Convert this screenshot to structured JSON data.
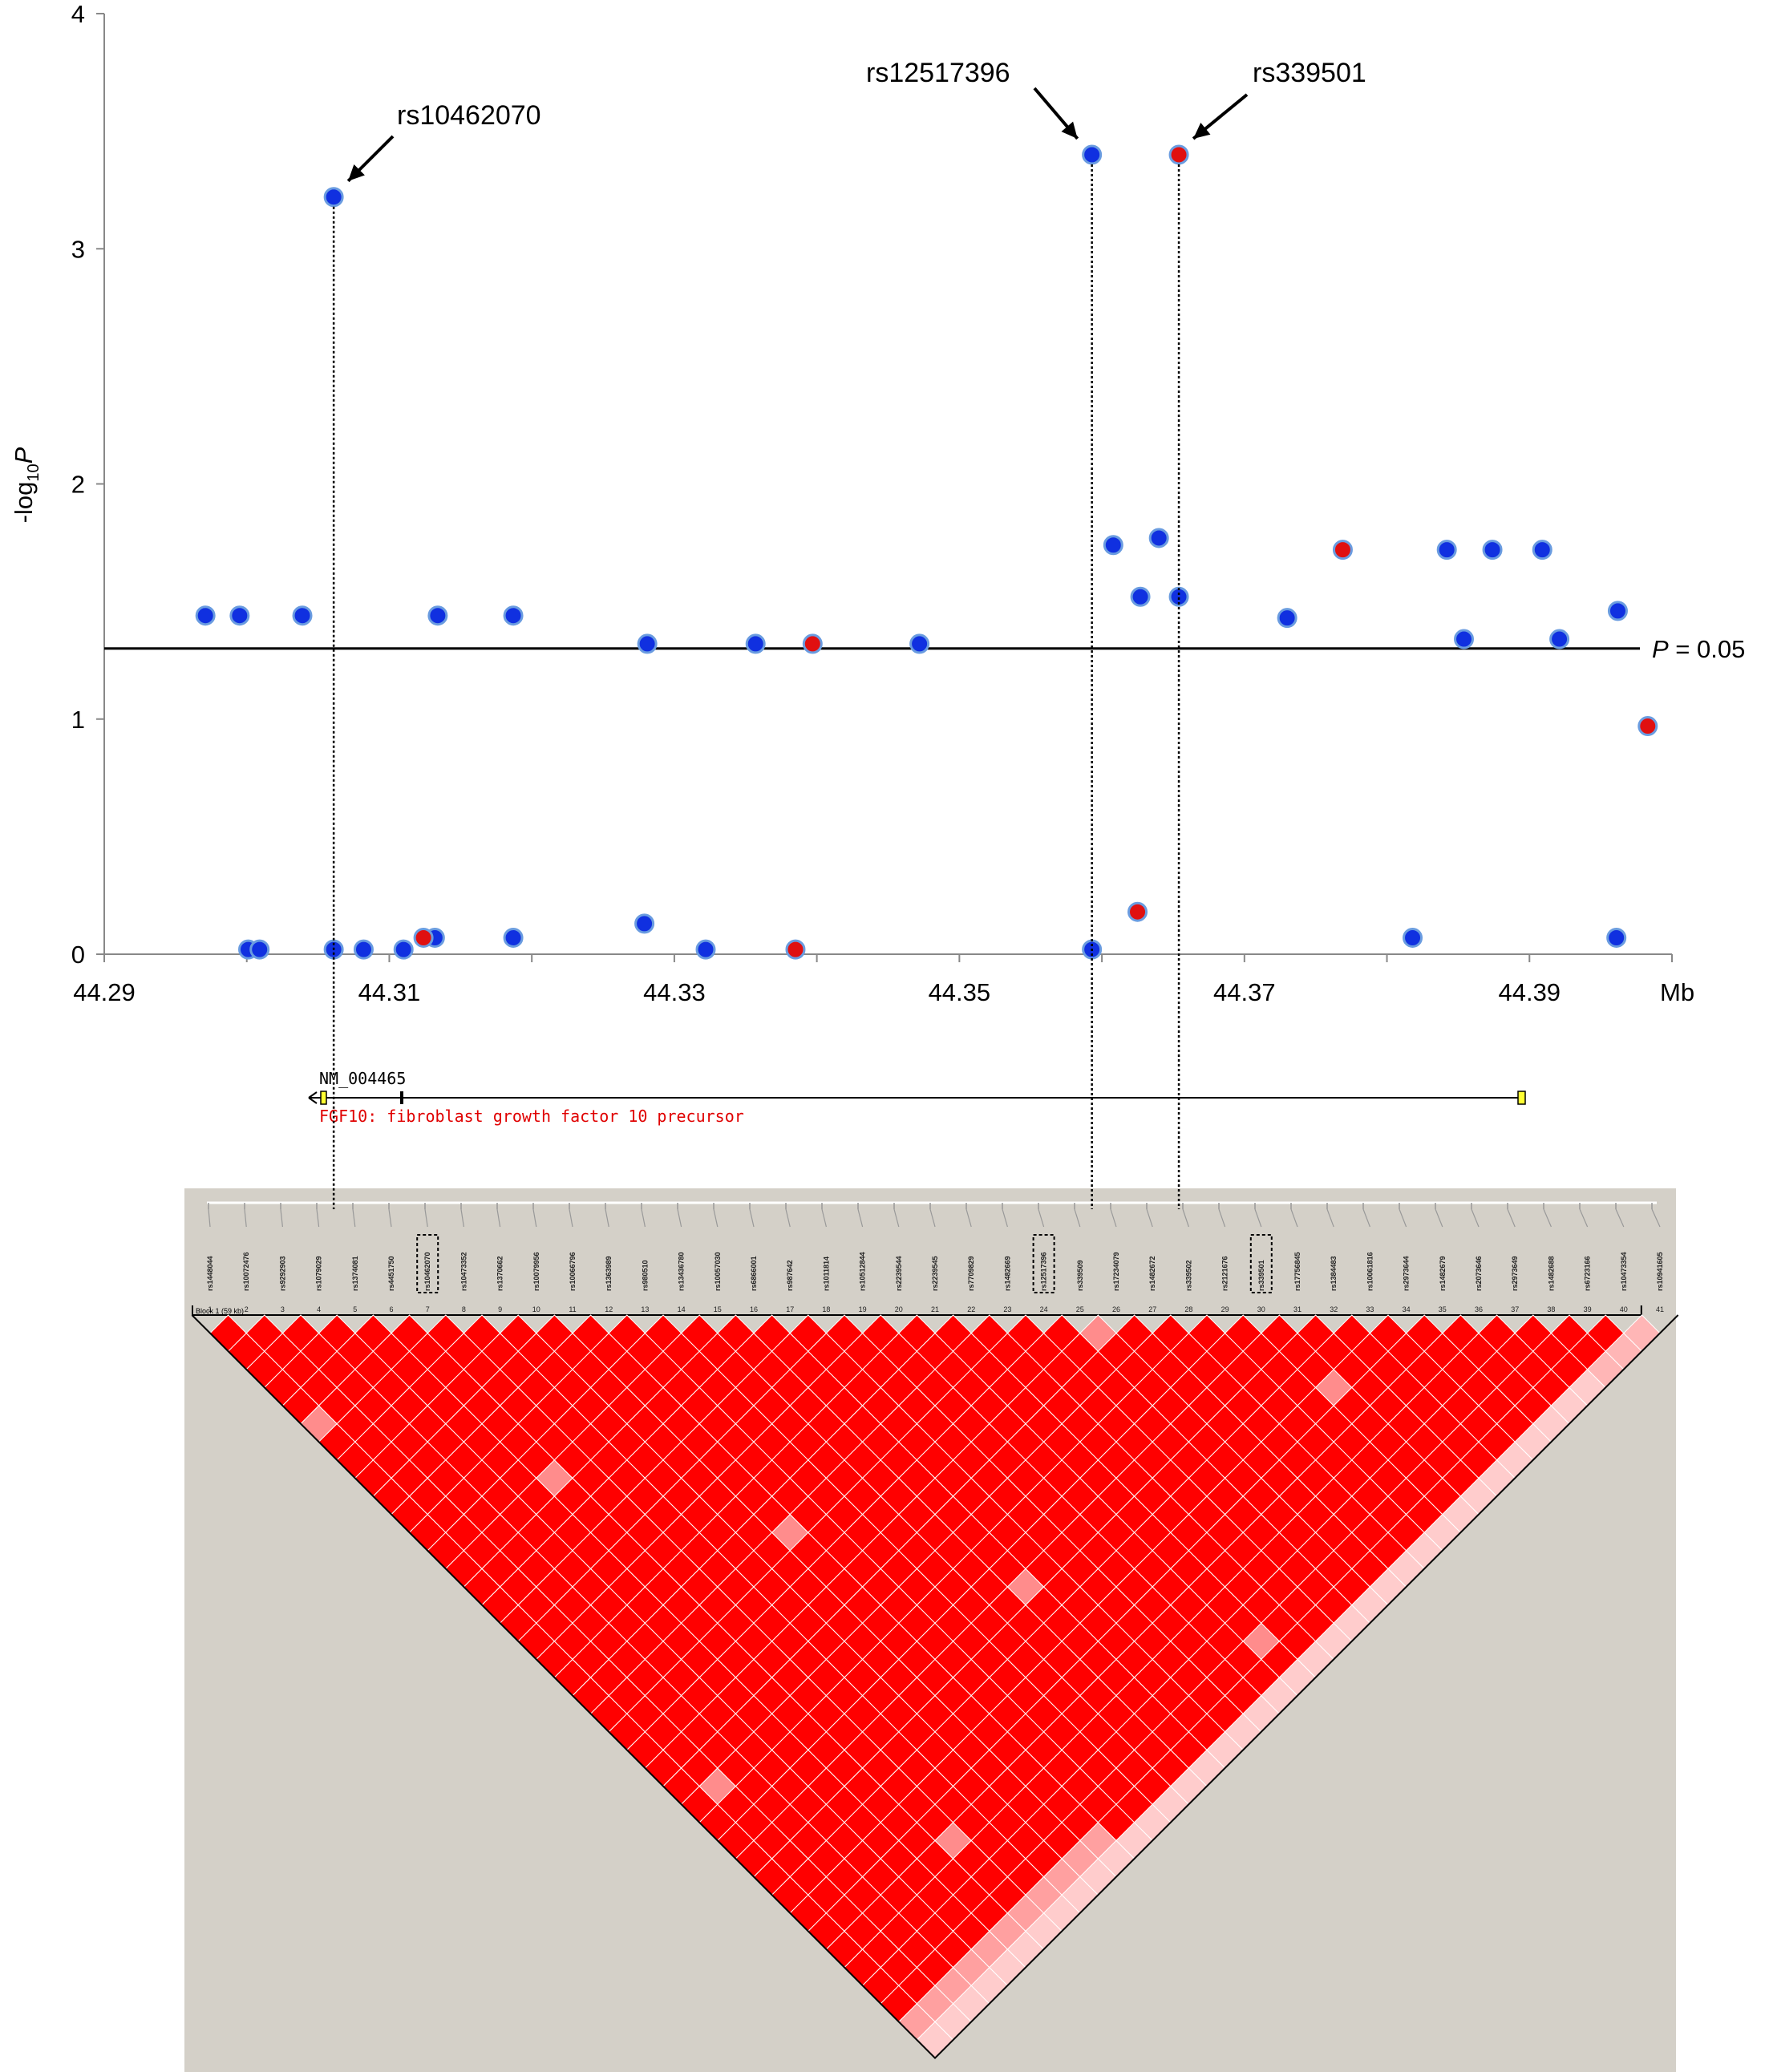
{
  "chart_data": {
    "type": "scatter",
    "title": "",
    "xlabel": "Mb",
    "ylabel": "-log10P",
    "xlim": [
      44.29,
      44.4
    ],
    "ylim": [
      0,
      4
    ],
    "x_ticks": [
      "44.29",
      "44.31",
      "44.33",
      "44.35",
      "44.37",
      "44.39"
    ],
    "y_ticks": [
      "0",
      "1",
      "2",
      "3",
      "4"
    ],
    "threshold": {
      "value": 1.3,
      "label_italic": "P",
      "label_rest": " = 0.05"
    },
    "series": [
      {
        "color": "#1030e0",
        "points": [
          [
            44.2971,
            1.44
          ],
          [
            44.2995,
            1.44
          ],
          [
            44.3039,
            1.44
          ],
          [
            44.3134,
            1.44
          ],
          [
            44.3187,
            1.44
          ],
          [
            44.3281,
            1.32
          ],
          [
            44.3357,
            1.32
          ],
          [
            44.3472,
            1.32
          ],
          [
            44.3608,
            1.74
          ],
          [
            44.3627,
            1.52
          ],
          [
            44.364,
            1.77
          ],
          [
            44.3654,
            1.52
          ],
          [
            44.373,
            1.43
          ],
          [
            44.3842,
            1.72
          ],
          [
            44.3874,
            1.72
          ],
          [
            44.3909,
            1.72
          ],
          [
            44.3854,
            1.34
          ],
          [
            44.3921,
            1.34
          ],
          [
            44.3962,
            1.46
          ],
          [
            44.3061,
            3.22
          ],
          [
            44.3593,
            3.4
          ],
          [
            44.3001,
            0.02
          ],
          [
            44.3009,
            0.02
          ],
          [
            44.3061,
            0.02
          ],
          [
            44.3082,
            0.02
          ],
          [
            44.311,
            0.02
          ],
          [
            44.3132,
            0.07
          ],
          [
            44.3187,
            0.07
          ],
          [
            44.3279,
            0.13
          ],
          [
            44.3322,
            0.02
          ],
          [
            44.3593,
            0.02
          ],
          [
            44.3818,
            0.07
          ],
          [
            44.3961,
            0.07
          ]
        ]
      },
      {
        "color": "#e01010",
        "points": [
          [
            44.3654,
            3.4
          ],
          [
            44.3397,
            1.32
          ],
          [
            44.3769,
            1.72
          ],
          [
            44.3983,
            0.97
          ],
          [
            44.3124,
            0.07
          ],
          [
            44.3625,
            0.18
          ],
          [
            44.3385,
            0.02
          ]
        ]
      }
    ],
    "annotations": [
      {
        "text": "rs10462070",
        "x": 44.3061,
        "y": 3.22
      },
      {
        "text": "rs12517396",
        "x": 44.3593,
        "y": 3.4
      },
      {
        "text": "rs339501",
        "x": 44.3654,
        "y": 3.4
      }
    ]
  },
  "gene": {
    "transcript": "NM_004465",
    "description": "FGF10: fibroblast growth factor 10 precursor",
    "description_color": "#e00000"
  },
  "ld_plot": {
    "block_label": "Block 1 (59 kb)",
    "snps": [
      "rs1448044",
      "rs10072476",
      "rs9292903",
      "rs1079029",
      "rs1374081",
      "rs4451750",
      "rs10462070",
      "rs10473352",
      "rs1370662",
      "rs10079956",
      "rs10066796",
      "rs1363989",
      "rs980510",
      "rs13436780",
      "rs10057030",
      "rs6866001",
      "rs987642",
      "rs1011814",
      "rs10512844",
      "rs2239544",
      "rs2239545",
      "rs7709829",
      "rs1482669",
      "rs12517396",
      "rs339509",
      "rs17234079",
      "rs1482672",
      "rs339502",
      "rs2121676",
      "rs339501",
      "rs17756845",
      "rs1384483",
      "rs10061816",
      "rs2973644",
      "rs1482679",
      "rs2073646",
      "rs2973649",
      "rs1482688",
      "rs6723166",
      "rs10473354",
      "rs10941605"
    ],
    "boxed": [
      "rs10462070",
      "rs12517396",
      "rs339501"
    ],
    "numbers": [
      "1",
      "2",
      "3",
      "4",
      "5",
      "6",
      "7",
      "8",
      "9",
      "10",
      "11",
      "12",
      "13",
      "14",
      "15",
      "16",
      "17",
      "18",
      "19",
      "20",
      "21",
      "22",
      "23",
      "24",
      "25",
      "26",
      "27",
      "28",
      "29",
      "30",
      "31",
      "32",
      "33",
      "34",
      "35",
      "36",
      "37",
      "38",
      "39",
      "40",
      "41"
    ]
  }
}
